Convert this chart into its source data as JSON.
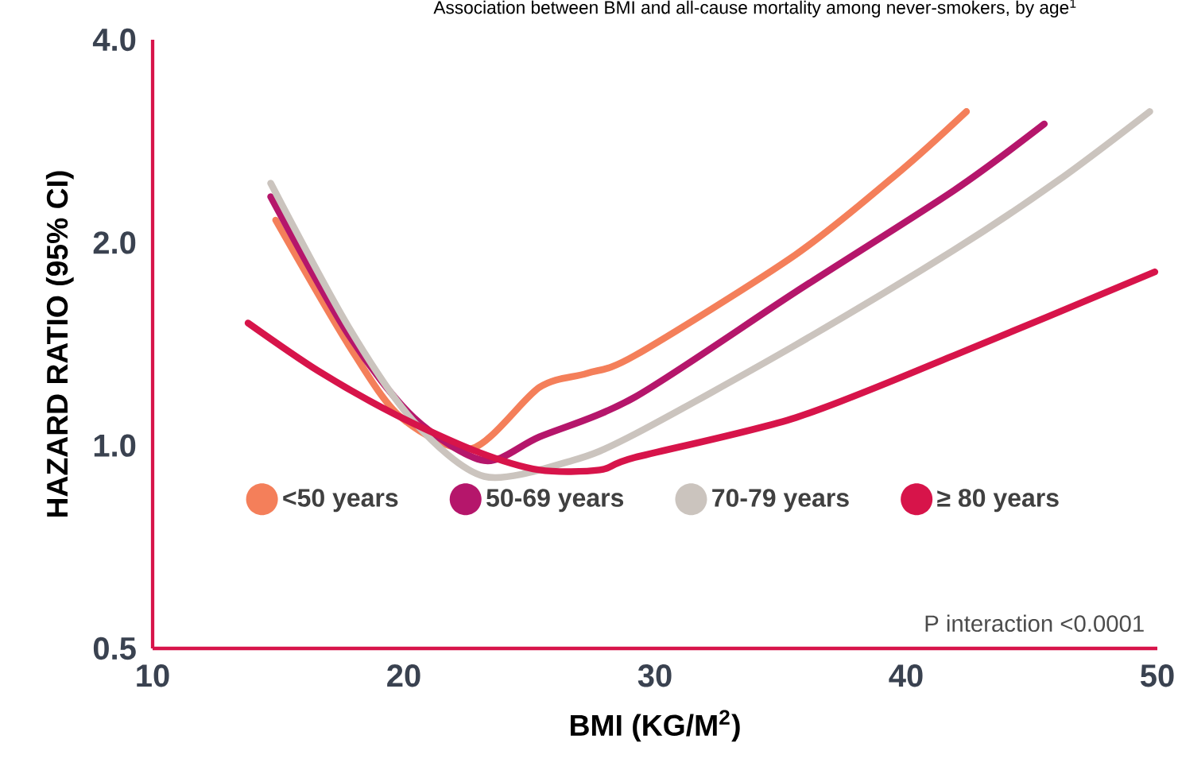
{
  "chart_data": {
    "type": "line",
    "title": "Association between BMI and all-cause mortality among never-smokers, by age$^{1}$",
    "xlabel": "BMI (KG/M$^{2}$)",
    "ylabel": "HAZARD RATIO (95% CI)",
    "log": "y",
    "xlim": [
      10,
      50
    ],
    "xticks": [
      10,
      20,
      30,
      40,
      50
    ],
    "ylim": [
      0.5,
      4
    ],
    "yticks": [
      0.5,
      {
        "value": 1,
        "label": "1.0"
      },
      {
        "value": 2,
        "label": "2.0"
      },
      {
        "value": 4,
        "label": "4.0"
      }
    ],
    "legend": "bottom",
    "line_style": "solid",
    "annotations": [
      "P interaction <0.0001"
    ],
    "series": [
      {
        "name": "<50 years",
        "color": "#f47f5a",
        "x": [
          14.9,
          17.8,
          19.9,
          22.7,
          25.4,
          27.3,
          29.2,
          35.6,
          39.8,
          42.4
        ],
        "values": [
          2.16,
          1.41,
          1.1,
          0.99,
          1.22,
          1.28,
          1.36,
          1.92,
          2.56,
          3.13
        ]
      },
      {
        "name": "50-69 years",
        "color": "#b5166b",
        "x": [
          14.7,
          17.8,
          20.4,
          23.2,
          25.4,
          29.2,
          35.6,
          41.9,
          45.5
        ],
        "values": [
          2.34,
          1.46,
          1.1,
          0.95,
          1.03,
          1.18,
          1.69,
          2.39,
          3.0
        ]
      },
      {
        "name": "70-79 years",
        "color": "#cbc4be",
        "x": [
          14.7,
          17.8,
          20.4,
          23.2,
          26.7,
          29.2,
          35.6,
          41.9,
          46.1,
          49.7
        ],
        "values": [
          2.45,
          1.5,
          1.085,
          0.9,
          0.95,
          1.04,
          1.41,
          1.95,
          2.48,
          3.13
        ]
      },
      {
        "name": "≥ 80 years",
        "color": "#d7144a",
        "x": [
          13.8,
          16.6,
          19.7,
          22.9,
          25.4,
          27.8,
          29.2,
          35.6,
          41.9,
          49.9
        ],
        "values": [
          1.52,
          1.29,
          1.11,
          0.98,
          0.92,
          0.92,
          0.96,
          1.1,
          1.36,
          1.81
        ]
      }
    ]
  }
}
